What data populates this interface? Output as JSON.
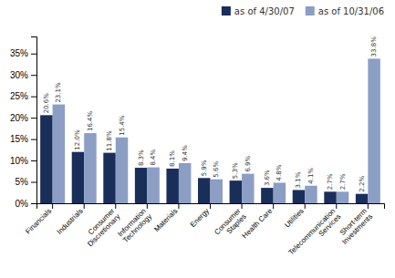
{
  "chart_data": {
    "type": "bar",
    "categories": [
      "Financials",
      "Industrials",
      "Consumer\nDiscretionary",
      "Information\nTechnology",
      "Materials",
      "Energy",
      "Consumer\nStaples",
      "Health Care",
      "Utilities",
      "Telecommunication\nServices",
      "Short-term\nInvestments"
    ],
    "series": [
      {
        "name": "as of 4/30/07",
        "color": "#1a2e5a",
        "values": [
          20.6,
          12.0,
          11.8,
          8.3,
          8.1,
          5.9,
          5.3,
          3.6,
          3.1,
          2.7,
          2.2
        ],
        "value_labels": [
          "20.6%",
          "12.0%",
          "11.8%",
          "8.3%",
          "8.1%",
          "5.9%",
          "5.3%",
          "3.6%",
          "3.1%",
          "2.7%",
          "2.2%"
        ]
      },
      {
        "name": "as of 10/31/06",
        "color": "#8c9ec4",
        "values": [
          23.1,
          16.4,
          15.4,
          8.4,
          9.4,
          5.6,
          6.9,
          4.8,
          4.1,
          2.7,
          33.8
        ],
        "value_labels": [
          "23.1%",
          "16.4%",
          "15.4%",
          "8.4%",
          "9.4%",
          "5.6%",
          "6.9%",
          "4.8%",
          "4.1%",
          "2.7%",
          "33.8%"
        ]
      }
    ],
    "ylim": [
      0,
      39
    ],
    "yticks": [
      {
        "value": 0,
        "label": "0%"
      },
      {
        "value": 5,
        "label": "5%"
      },
      {
        "value": 10,
        "label": "10%"
      },
      {
        "value": 15,
        "label": "15%"
      },
      {
        "value": 20,
        "label": "20%"
      },
      {
        "value": 25,
        "label": "25%"
      },
      {
        "value": 30,
        "label": "30%"
      },
      {
        "value": 35,
        "label": "35%"
      }
    ],
    "grid": false,
    "legend": "upper right",
    "data_labels": true
  }
}
